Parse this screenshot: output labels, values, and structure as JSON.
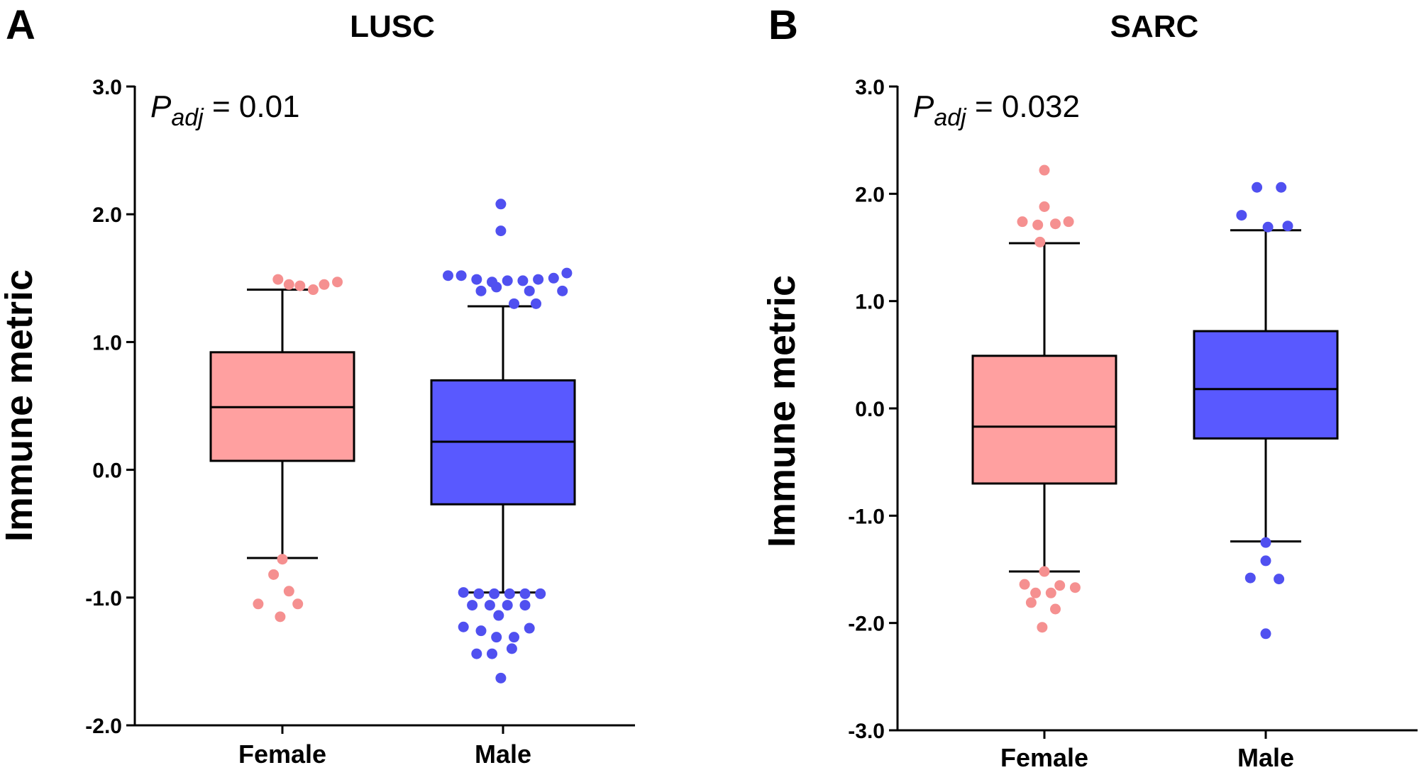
{
  "chart_data": [
    {
      "type": "box",
      "panel": "A",
      "title": "LUSC",
      "ylabel": "Immune metric",
      "xlabel": "",
      "ylim": [
        -2.0,
        3.0
      ],
      "yticks": [
        "-2.0",
        "-1.0",
        "0.0",
        "1.0",
        "2.0",
        "3.0"
      ],
      "annotation": {
        "main": "P",
        "sub": "adj",
        "value": " = 0.01"
      },
      "categories": [
        "Female",
        "Male"
      ],
      "boxes": [
        {
          "name": "Female",
          "color": "#FFA0A0",
          "outlier_color": "#F59090",
          "q1": 0.07,
          "median": 0.49,
          "q3": 0.92,
          "whisker_low": -0.69,
          "whisker_high": 1.41,
          "outliers": [
            [
              -0.02,
              1.49
            ],
            [
              0.03,
              1.45
            ],
            [
              0.08,
              1.44
            ],
            [
              0.14,
              1.41
            ],
            [
              0.19,
              1.45
            ],
            [
              0.25,
              1.47
            ],
            [
              0.0,
              -0.7
            ],
            [
              -0.04,
              -0.82
            ],
            [
              0.03,
              -0.95
            ],
            [
              -0.11,
              -1.05
            ],
            [
              0.07,
              -1.05
            ],
            [
              -0.01,
              -1.15
            ]
          ]
        },
        {
          "name": "Male",
          "color": "#5959FF",
          "outlier_color": "#5050F0",
          "q1": -0.27,
          "median": 0.22,
          "q3": 0.7,
          "whisker_low": -0.96,
          "whisker_high": 1.28,
          "outliers": [
            [
              -0.01,
              2.08
            ],
            [
              -0.01,
              1.87
            ],
            [
              -0.25,
              1.52
            ],
            [
              -0.19,
              1.52
            ],
            [
              -0.12,
              1.49
            ],
            [
              -0.05,
              1.47
            ],
            [
              0.02,
              1.48
            ],
            [
              0.09,
              1.48
            ],
            [
              0.16,
              1.49
            ],
            [
              0.23,
              1.5
            ],
            [
              0.29,
              1.54
            ],
            [
              -0.1,
              1.4
            ],
            [
              -0.03,
              1.43
            ],
            [
              0.12,
              1.4
            ],
            [
              0.27,
              1.4
            ],
            [
              0.05,
              1.3
            ],
            [
              0.15,
              1.3
            ],
            [
              -0.18,
              -0.96
            ],
            [
              -0.11,
              -0.97
            ],
            [
              -0.04,
              -0.97
            ],
            [
              0.03,
              -0.97
            ],
            [
              0.1,
              -0.97
            ],
            [
              0.17,
              -0.97
            ],
            [
              -0.14,
              -1.06
            ],
            [
              -0.06,
              -1.06
            ],
            [
              0.02,
              -1.06
            ],
            [
              0.1,
              -1.06
            ],
            [
              -0.02,
              -1.14
            ],
            [
              -0.18,
              -1.23
            ],
            [
              -0.1,
              -1.26
            ],
            [
              0.12,
              -1.24
            ],
            [
              -0.03,
              -1.31
            ],
            [
              0.05,
              -1.31
            ],
            [
              -0.12,
              -1.44
            ],
            [
              -0.05,
              -1.44
            ],
            [
              0.04,
              -1.4
            ],
            [
              -0.01,
              -1.63
            ]
          ]
        }
      ]
    },
    {
      "type": "box",
      "panel": "B",
      "title": "SARC",
      "ylabel": "Immune metric",
      "xlabel": "",
      "ylim": [
        -3.0,
        3.0
      ],
      "yticks": [
        "-3.0",
        "-2.0",
        "-1.0",
        "0.0",
        "1.0",
        "2.0",
        "3.0"
      ],
      "annotation": {
        "main": "P",
        "sub": "adj",
        "value": " = 0.032"
      },
      "categories": [
        "Female",
        "Male"
      ],
      "boxes": [
        {
          "name": "Female",
          "color": "#FFA0A0",
          "outlier_color": "#F59090",
          "q1": -0.7,
          "median": -0.17,
          "q3": 0.49,
          "whisker_low": -1.52,
          "whisker_high": 1.54,
          "outliers": [
            [
              0.0,
              2.22
            ],
            [
              0.0,
              1.88
            ],
            [
              -0.1,
              1.74
            ],
            [
              -0.03,
              1.71
            ],
            [
              0.05,
              1.72
            ],
            [
              0.11,
              1.74
            ],
            [
              -0.02,
              1.55
            ],
            [
              0.0,
              -1.52
            ],
            [
              -0.09,
              -1.64
            ],
            [
              0.07,
              -1.65
            ],
            [
              0.14,
              -1.67
            ],
            [
              -0.04,
              -1.72
            ],
            [
              0.03,
              -1.72
            ],
            [
              -0.06,
              -1.81
            ],
            [
              0.05,
              -1.87
            ],
            [
              -0.01,
              -2.04
            ]
          ]
        },
        {
          "name": "Male",
          "color": "#5959FF",
          "outlier_color": "#5050F0",
          "q1": -0.28,
          "median": 0.18,
          "q3": 0.72,
          "whisker_low": -1.24,
          "whisker_high": 1.66,
          "outliers": [
            [
              -0.04,
              2.06
            ],
            [
              0.07,
              2.06
            ],
            [
              -0.11,
              1.8
            ],
            [
              0.01,
              1.69
            ],
            [
              0.1,
              1.7
            ],
            [
              0.0,
              -1.25
            ],
            [
              0.0,
              -1.42
            ],
            [
              -0.07,
              -1.58
            ],
            [
              0.06,
              -1.59
            ],
            [
              0.0,
              -2.1
            ]
          ]
        }
      ]
    }
  ]
}
